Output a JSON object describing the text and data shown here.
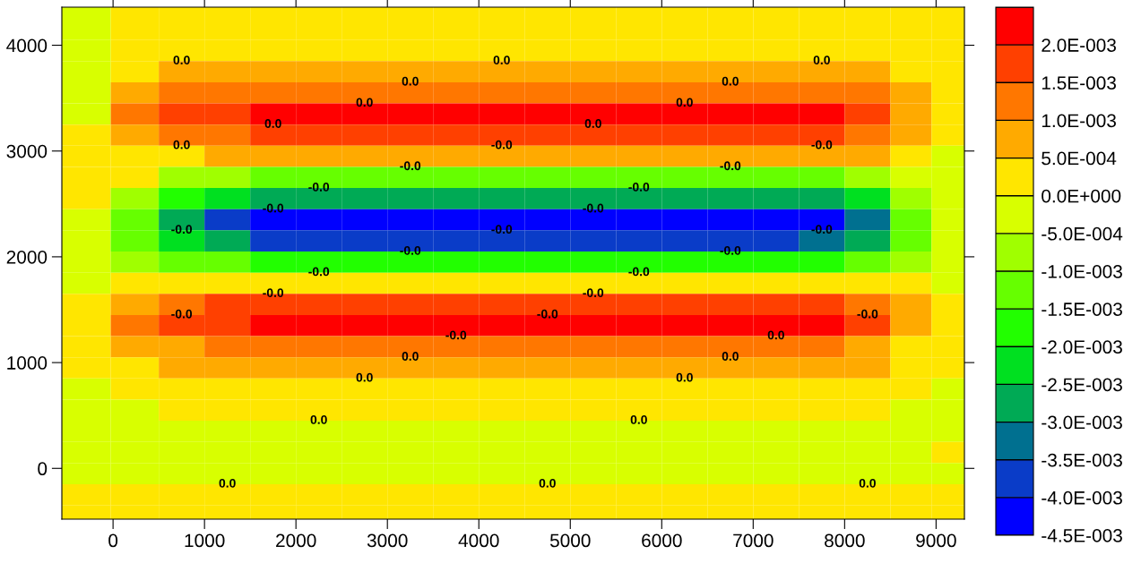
{
  "chart_data": {
    "type": "heatmap",
    "x": [
      -300,
      250,
      750,
      1250,
      1750,
      2250,
      2750,
      3250,
      3750,
      4250,
      4750,
      5250,
      5750,
      6250,
      6750,
      7250,
      7750,
      8250,
      8750,
      9150
    ],
    "y": [
      4350,
      4150,
      3950,
      3750,
      3550,
      3350,
      3150,
      2950,
      2750,
      2550,
      2350,
      2150,
      1950,
      1750,
      1550,
      1350,
      1150,
      950,
      750,
      550,
      350,
      150,
      -50,
      -250,
      -450
    ],
    "cells": [
      [
        -0.0001,
        0.0002,
        0.0002,
        0.0002,
        0.0002,
        0.0002,
        0.0002,
        0.0002,
        0.0002,
        0.0002,
        0.0002,
        0.0002,
        0.0002,
        0.0002,
        0.0002,
        0.0002,
        0.0002,
        0.0002,
        0.0002,
        0.0002
      ],
      [
        -0.0001,
        0.0002,
        0.0003,
        0.0003,
        0.0003,
        0.0003,
        0.0003,
        0.0003,
        0.0003,
        0.0003,
        0.0003,
        0.0003,
        0.0003,
        0.0003,
        0.0003,
        0.0003,
        0.0003,
        0.0003,
        0.0003,
        0.0002
      ],
      [
        -0.0001,
        0.0002,
        0.0003,
        0.0003,
        0.0004,
        0.0004,
        0.0004,
        0.0004,
        0.0004,
        0.0004,
        0.0004,
        0.0004,
        0.0004,
        0.0004,
        0.0004,
        0.0004,
        0.0004,
        0.0003,
        0.0001,
        0.0
      ],
      [
        -0.0001,
        0.0003,
        0.0005,
        0.0006,
        0.0007,
        0.0007,
        0.0007,
        0.0007,
        0.0007,
        0.0007,
        0.0007,
        0.0007,
        0.0007,
        0.0007,
        0.0007,
        0.0007,
        0.0007,
        0.0005,
        0.0002,
        0.0001
      ],
      [
        -0.0001,
        0.0006,
        0.001,
        0.0012,
        0.0014,
        0.0014,
        0.0014,
        0.0014,
        0.0014,
        0.0014,
        0.0014,
        0.0014,
        0.0014,
        0.0014,
        0.0014,
        0.0014,
        0.0013,
        0.0011,
        0.0005,
        0.0002
      ],
      [
        -0.0001,
        0.001,
        0.0015,
        0.0019,
        0.0022,
        0.0022,
        0.0022,
        0.0022,
        0.0022,
        0.0022,
        0.0022,
        0.0022,
        0.0022,
        0.0022,
        0.0022,
        0.0022,
        0.0021,
        0.0017,
        0.0008,
        0.0003
      ],
      [
        0.0002,
        0.0008,
        0.0012,
        0.0014,
        0.0017,
        0.0017,
        0.0017,
        0.0017,
        0.0017,
        0.0017,
        0.0017,
        0.0017,
        0.0017,
        0.0017,
        0.0017,
        0.0017,
        0.0016,
        0.0013,
        0.0006,
        0.0002
      ],
      [
        0.0002,
        0.0003,
        0.0004,
        0.0005,
        0.0006,
        0.0006,
        0.0006,
        0.0006,
        0.0006,
        0.0006,
        0.0006,
        0.0006,
        0.0006,
        0.0006,
        0.0006,
        0.0006,
        0.0006,
        0.0005,
        0.0002,
        -0.0001
      ],
      [
        0.0001,
        0.0001,
        -0.0006,
        -0.001,
        -0.0013,
        -0.0013,
        -0.0013,
        -0.0013,
        -0.0013,
        -0.0013,
        -0.0013,
        -0.0013,
        -0.0013,
        -0.0013,
        -0.0013,
        -0.0013,
        -0.0012,
        -0.0009,
        -0.0004,
        -0.0002
      ],
      [
        0.0001,
        -0.0009,
        -0.002,
        -0.0025,
        -0.0029,
        -0.0029,
        -0.0029,
        -0.0029,
        -0.0029,
        -0.0029,
        -0.0029,
        -0.0029,
        -0.0029,
        -0.0029,
        -0.0029,
        -0.0029,
        -0.0028,
        -0.0022,
        -0.001,
        -0.0003
      ],
      [
        -0.0002,
        -0.0013,
        -0.003,
        -0.0038,
        -0.0043,
        -0.0043,
        -0.0043,
        -0.0043,
        -0.0043,
        -0.0043,
        -0.0043,
        -0.0043,
        -0.0043,
        -0.0043,
        -0.0043,
        -0.0043,
        -0.0041,
        -0.0032,
        -0.0014,
        -0.0004
      ],
      [
        -0.0002,
        -0.0011,
        -0.0024,
        -0.003,
        -0.0035,
        -0.0035,
        -0.0035,
        -0.0035,
        -0.0035,
        -0.0035,
        -0.0035,
        -0.0035,
        -0.0035,
        -0.0035,
        -0.0035,
        -0.0035,
        -0.0033,
        -0.0026,
        -0.0012,
        -0.0004
      ],
      [
        -0.0001,
        -0.0006,
        -0.0012,
        -0.0014,
        -0.0017,
        -0.0017,
        -0.0017,
        -0.0017,
        -0.0017,
        -0.0017,
        -0.0017,
        -0.0017,
        -0.0017,
        -0.0017,
        -0.0017,
        -0.0017,
        -0.0016,
        -0.0013,
        -0.0006,
        -0.0002
      ],
      [
        -0.0001,
        0.0001,
        0.0001,
        0.0001,
        0.0001,
        0.0001,
        0.0001,
        0.0001,
        0.0001,
        0.0001,
        0.0001,
        0.0001,
        0.0001,
        0.0001,
        0.0001,
        0.0001,
        0.0001,
        0.0001,
        0.0001,
        -0.0001
      ],
      [
        0.0002,
        0.0008,
        0.0013,
        0.0015,
        0.0018,
        0.0018,
        0.0018,
        0.0018,
        0.0018,
        0.0018,
        0.0018,
        0.0018,
        0.0018,
        0.0018,
        0.0018,
        0.0018,
        0.0017,
        0.0014,
        0.0006,
        0.0002
      ],
      [
        0.0002,
        0.001,
        0.0015,
        0.0019,
        0.0022,
        0.0022,
        0.0022,
        0.0022,
        0.0022,
        0.0022,
        0.0022,
        0.0022,
        0.0022,
        0.0022,
        0.0022,
        0.0022,
        0.0021,
        0.0017,
        0.0008,
        0.0003
      ],
      [
        0.0001,
        0.0005,
        0.0008,
        0.001,
        0.0012,
        0.0012,
        0.0012,
        0.0012,
        0.0012,
        0.0012,
        0.0012,
        0.0012,
        0.0012,
        0.0012,
        0.0012,
        0.0012,
        0.0011,
        0.0009,
        0.0004,
        0.0001
      ],
      [
        0.0001,
        0.0004,
        0.0006,
        0.0007,
        0.0008,
        0.0008,
        0.0008,
        0.0008,
        0.0008,
        0.0008,
        0.0008,
        0.0008,
        0.0008,
        0.0008,
        0.0008,
        0.0008,
        0.0008,
        0.0006,
        0.0003,
        0.0001
      ],
      [
        -0.0001,
        0.0001,
        0.0002,
        0.0003,
        0.0003,
        0.0003,
        0.0003,
        0.0003,
        0.0003,
        0.0003,
        0.0003,
        0.0003,
        0.0003,
        0.0003,
        0.0003,
        0.0003,
        0.0003,
        0.0002,
        0.0001,
        -0.0001
      ],
      [
        -0.0002,
        -0.0001,
        0.0001,
        0.0001,
        0.0001,
        0.0001,
        0.0001,
        0.0001,
        0.0001,
        0.0001,
        0.0001,
        0.0001,
        0.0001,
        0.0001,
        0.0001,
        0.0001,
        0.0001,
        0.0001,
        -0.0001,
        -0.0002
      ],
      [
        -0.0002,
        -0.0002,
        -0.0002,
        -0.0002,
        -0.0002,
        -0.0002,
        -0.0002,
        -0.0002,
        -0.0002,
        -0.0002,
        -0.0002,
        -0.0002,
        -0.0002,
        -0.0002,
        -0.0002,
        -0.0002,
        -0.0002,
        -0.0002,
        -0.0002,
        -0.0002
      ],
      [
        -0.0002,
        -0.0002,
        -0.0002,
        -0.0002,
        -0.0002,
        -0.0002,
        -0.0002,
        -0.0002,
        -0.0002,
        -0.0002,
        -0.0002,
        -0.0002,
        -0.0002,
        -0.0002,
        -0.0002,
        -0.0002,
        -0.0002,
        -0.0002,
        -0.0002,
        0.0001
      ],
      [
        -0.0001,
        -0.0001,
        -0.0001,
        -0.0001,
        -0.0001,
        -0.0001,
        -0.0001,
        -0.0001,
        -0.0001,
        -0.0001,
        -0.0001,
        -0.0001,
        -0.0001,
        -0.0001,
        -0.0001,
        -0.0001,
        -0.0001,
        -0.0001,
        -0.0001,
        -0.0001
      ],
      [
        0.0002,
        0.0002,
        0.0002,
        0.0002,
        0.0002,
        0.0002,
        0.0002,
        0.0002,
        0.0002,
        0.0002,
        0.0002,
        0.0002,
        0.0002,
        0.0002,
        0.0002,
        0.0002,
        0.0002,
        0.0002,
        0.0002,
        0.0002
      ],
      [
        0.0002,
        0.0002,
        0.0002,
        0.0002,
        0.0002,
        0.0002,
        0.0002,
        0.0002,
        0.0002,
        0.0002,
        0.0002,
        0.0002,
        0.0002,
        0.0002,
        0.0002,
        0.0002,
        0.0002,
        0.0002,
        0.0002,
        0.0002
      ]
    ],
    "colors": [
      "#0000ff",
      "#0a3cc8",
      "#007090",
      "#00aa55",
      "#00e020",
      "#22ff00",
      "#66ff00",
      "#a0ff00",
      "#d8ff00",
      "#ffe600",
      "#ffaa00",
      "#ff7700",
      "#ff4000",
      "#ff0000"
    ],
    "clim": [
      -0.0045,
      0.0025
    ],
    "cticks": [
      {
        "value": 0.002,
        "label": "2.0E-003"
      },
      {
        "value": 0.0015,
        "label": "1.5E-003"
      },
      {
        "value": 0.001,
        "label": "1.0E-003"
      },
      {
        "value": 0.0005,
        "label": "5.0E-004"
      },
      {
        "value": 0,
        "label": "0.0E+000"
      },
      {
        "value": -0.0005,
        "label": "-5.0E-004"
      },
      {
        "value": -0.001,
        "label": "-1.0E-003"
      },
      {
        "value": -0.0015,
        "label": "-1.5E-003"
      },
      {
        "value": -0.002,
        "label": "-2.0E-003"
      },
      {
        "value": -0.0025,
        "label": "-2.5E-003"
      },
      {
        "value": -0.003,
        "label": "-3.0E-003"
      },
      {
        "value": -0.0035,
        "label": "-3.5E-003"
      },
      {
        "value": -0.004,
        "label": "-4.0E-003"
      },
      {
        "value": -0.0045,
        "label": "-4.5E-003"
      }
    ],
    "xlim": [
      -560,
      9310
    ],
    "ylim": [
      -480,
      4360
    ],
    "xticks": [
      0,
      1000,
      2000,
      3000,
      4000,
      5000,
      6000,
      7000,
      8000,
      9000
    ],
    "yticks": [
      0,
      1000,
      2000,
      3000,
      4000
    ],
    "grid": false,
    "annotations": [
      "0.0",
      "0.0",
      "0.0",
      "0.0",
      "0.0",
      "0.0",
      "0.0",
      "0.0",
      "0.0",
      "0.0",
      "-0.0",
      "-0.0",
      "-0.0",
      "-0.0",
      "-0.0",
      "-0.0",
      "-0.0",
      "-0.0",
      "-0.0",
      "-0.0",
      "-0.0",
      "-0.0",
      "-0.0",
      "-0.0",
      "-0.0",
      "-0.0",
      "-0.0",
      "-0.0",
      "-0.0",
      "-0.0",
      "-0.0",
      "0.0",
      "0.0",
      "0.0",
      "0.0",
      "0.0",
      "0.0",
      "0.0",
      "0.0",
      "0.0",
      "0.0"
    ]
  }
}
